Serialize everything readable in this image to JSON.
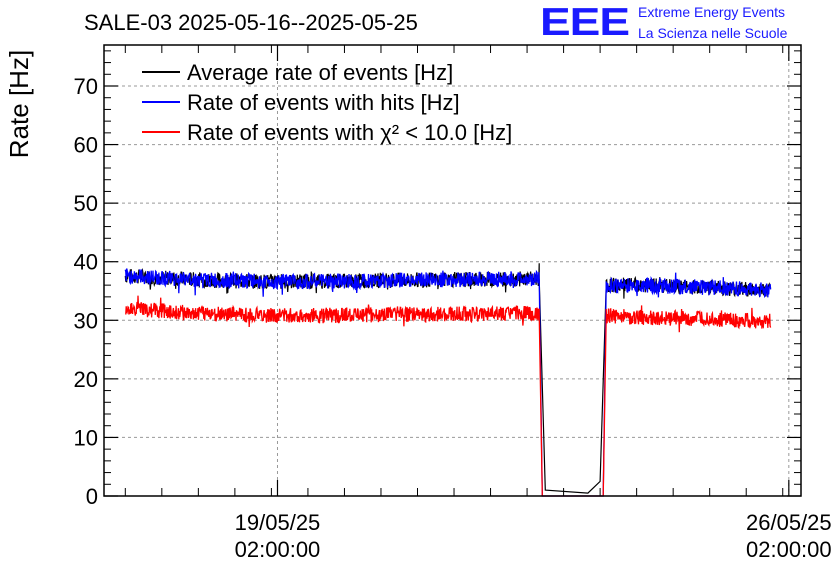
{
  "logo": {
    "mark": "EEE",
    "line1": "Extreme Energy Events",
    "line2": "La Scienza nelle Scuole",
    "color": "#1a1aff"
  },
  "chart_data": {
    "type": "line",
    "title": "SALE-03 2025-05-16--2025-05-25",
    "ylabel": "Rate [Hz]",
    "xlabel": "",
    "ylim": [
      0,
      77
    ],
    "yticks": [
      0,
      10,
      20,
      30,
      40,
      50,
      60,
      70
    ],
    "xlim": [
      "2025-05-16T17:00",
      "2025-05-26T06:00"
    ],
    "xticks": [
      {
        "x": "2025-05-19T02:00",
        "label_date": "19/05/25",
        "label_time": "02:00:00"
      },
      {
        "x": "2025-05-26T02:00",
        "label_date": "26/05/25",
        "label_time": "02:00:00"
      }
    ],
    "grid": true,
    "legend_position": "top-left",
    "series": [
      {
        "name": "Average rate of events [Hz]",
        "color": "#000000",
        "points": [
          [
            "2025-05-17T00:00",
            37.6
          ],
          [
            "2025-05-18T00:00",
            36.9
          ],
          [
            "2025-05-19T00:00",
            36.6
          ],
          [
            "2025-05-20T00:00",
            36.7
          ],
          [
            "2025-05-21T00:00",
            36.9
          ],
          [
            "2025-05-22T00:00",
            37.0
          ],
          [
            "2025-05-22T16:00",
            37.1
          ],
          [
            "2025-05-22T18:00",
            1.0
          ],
          [
            "2025-05-23T08:00",
            0.5
          ],
          [
            "2025-05-23T12:00",
            2.5
          ],
          [
            "2025-05-23T14:00",
            36.0
          ],
          [
            "2025-05-24T00:00",
            36.0
          ],
          [
            "2025-05-25T00:00",
            35.6
          ],
          [
            "2025-05-25T20:00",
            35.1
          ]
        ]
      },
      {
        "name": "Rate of events with hits [Hz]",
        "color": "#0000ff",
        "points": [
          [
            "2025-05-17T00:00",
            37.6
          ],
          [
            "2025-05-18T00:00",
            36.9
          ],
          [
            "2025-05-19T00:00",
            36.6
          ],
          [
            "2025-05-20T00:00",
            36.7
          ],
          [
            "2025-05-21T00:00",
            36.9
          ],
          [
            "2025-05-22T00:00",
            37.0
          ],
          [
            "2025-05-22T16:00",
            37.1
          ],
          [
            "2025-05-22T17:00",
            0.0
          ],
          [
            "2025-05-23T13:00",
            0.0
          ],
          [
            "2025-05-23T14:00",
            36.0
          ],
          [
            "2025-05-24T00:00",
            36.0
          ],
          [
            "2025-05-25T00:00",
            35.6
          ],
          [
            "2025-05-25T20:00",
            35.1
          ]
        ]
      },
      {
        "name": "Rate of events with χ² < 10.0 [Hz]",
        "color": "#ff0000",
        "points": [
          [
            "2025-05-17T00:00",
            32.0
          ],
          [
            "2025-05-18T00:00",
            31.2
          ],
          [
            "2025-05-19T00:00",
            30.8
          ],
          [
            "2025-05-20T00:00",
            30.9
          ],
          [
            "2025-05-21T00:00",
            31.0
          ],
          [
            "2025-05-22T00:00",
            31.1
          ],
          [
            "2025-05-22T16:00",
            31.2
          ],
          [
            "2025-05-22T17:00",
            0.0
          ],
          [
            "2025-05-23T13:00",
            0.0
          ],
          [
            "2025-05-23T14:00",
            30.8
          ],
          [
            "2025-05-24T00:00",
            30.5
          ],
          [
            "2025-05-25T00:00",
            30.2
          ],
          [
            "2025-05-25T20:00",
            29.8
          ]
        ]
      }
    ]
  }
}
